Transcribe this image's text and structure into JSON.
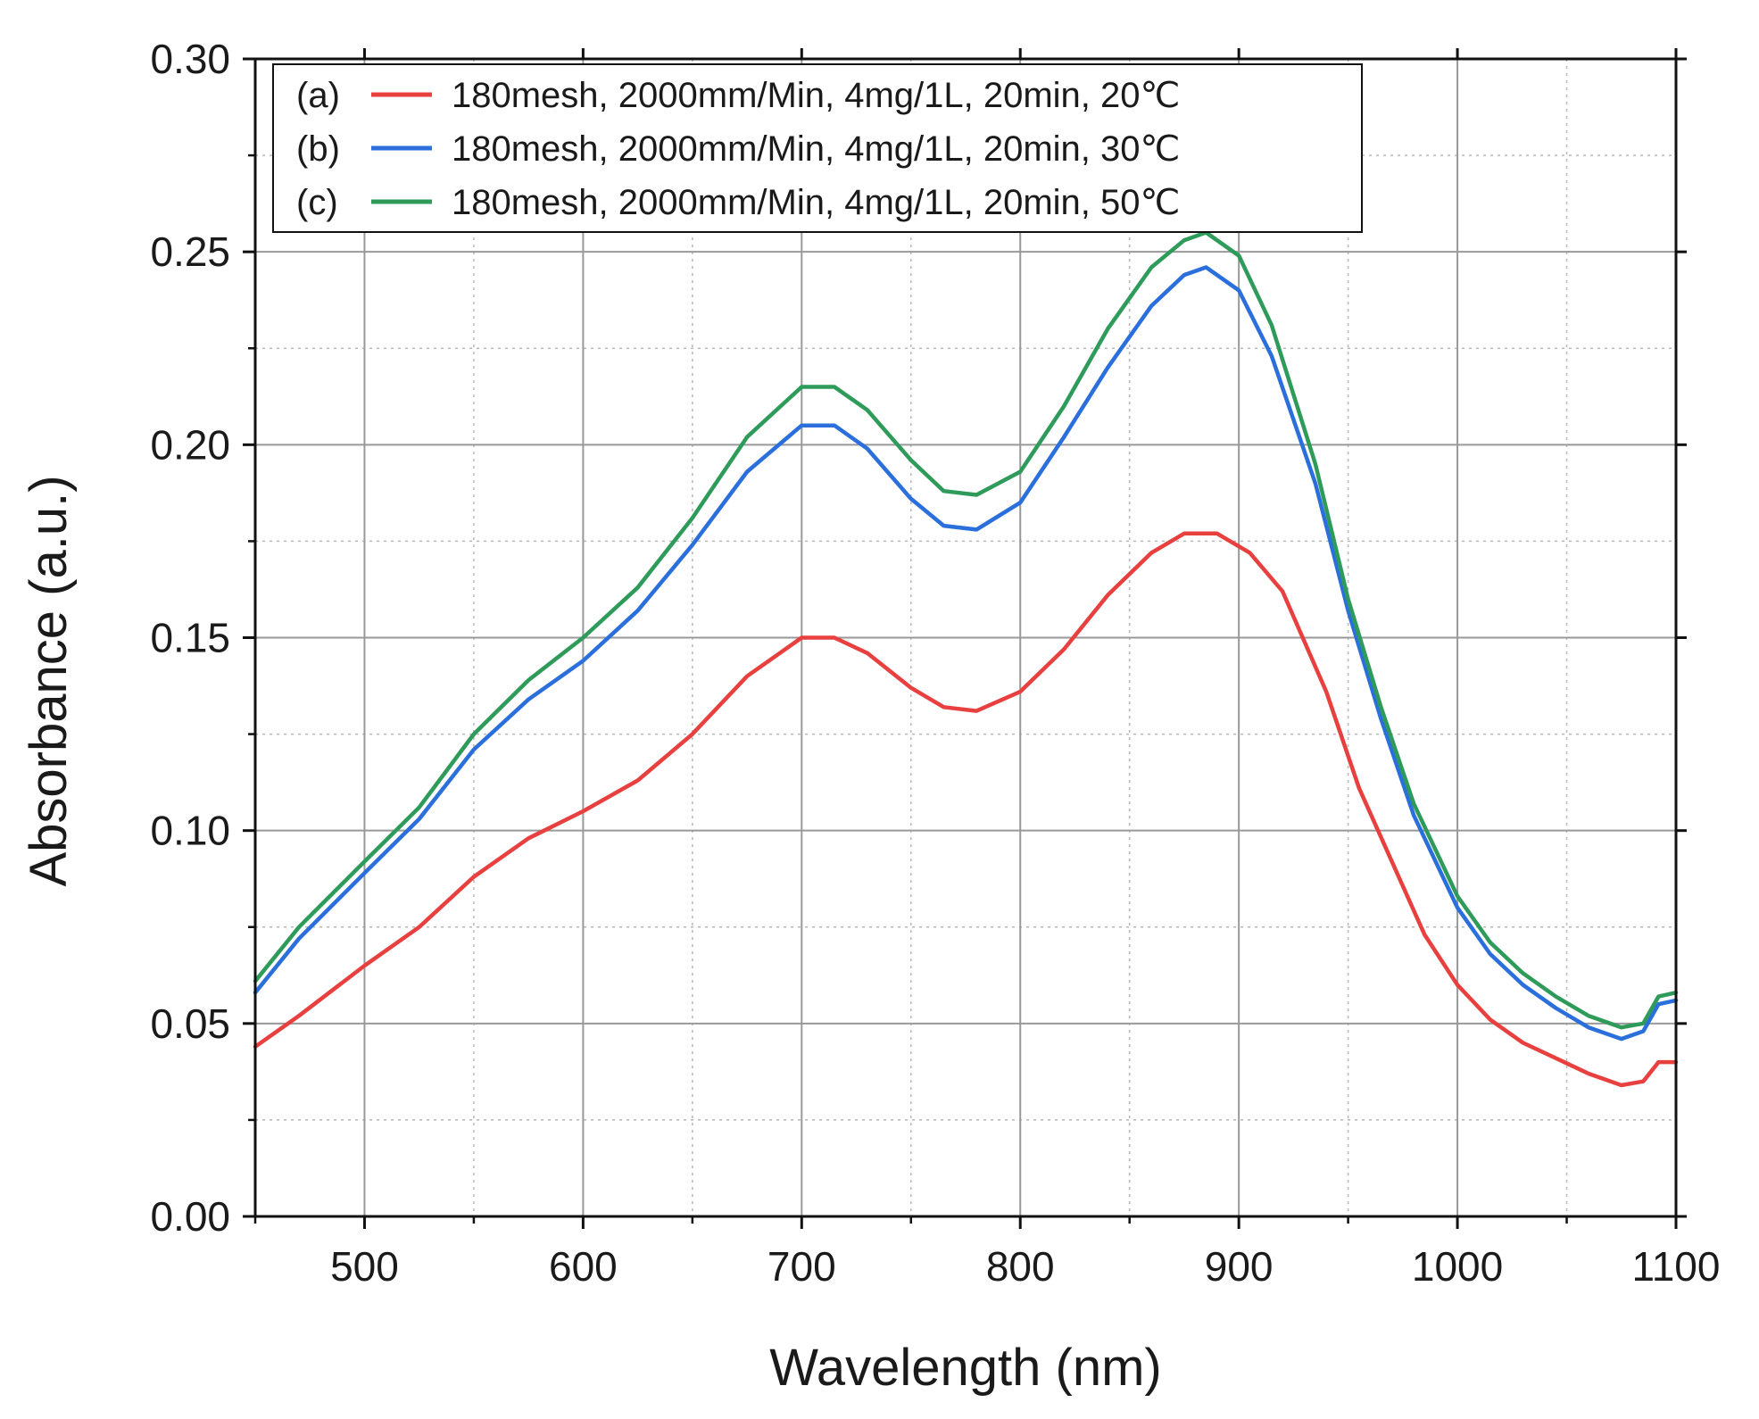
{
  "chart_data": {
    "type": "line",
    "xlabel": "Wavelength (nm)",
    "ylabel": "Absorbance (a.u.)",
    "xlim": [
      450,
      1100
    ],
    "ylim": [
      0.0,
      0.3
    ],
    "x_ticks": [
      500,
      600,
      700,
      800,
      900,
      1000,
      1100
    ],
    "x_tick_labels": [
      "500",
      "600",
      "700",
      "800",
      "900",
      "1000",
      "1100"
    ],
    "y_ticks": [
      0.0,
      0.05,
      0.1,
      0.15,
      0.2,
      0.25,
      0.3
    ],
    "y_tick_labels": [
      "0.00",
      "0.05",
      "0.10",
      "0.15",
      "0.20",
      "0.25",
      "0.30"
    ],
    "x_minor_step": 50,
    "y_minor_step": 0.025,
    "grid": true,
    "legend_position": "top-left",
    "series": [
      {
        "id": "a",
        "tag": "(a)",
        "name": "180mesh, 2000mm/Min, 4mg/1L, 20min, 20℃",
        "color": "#e8403f",
        "points": [
          [
            450,
            0.044
          ],
          [
            470,
            0.052
          ],
          [
            500,
            0.065
          ],
          [
            525,
            0.075
          ],
          [
            550,
            0.088
          ],
          [
            575,
            0.098
          ],
          [
            600,
            0.105
          ],
          [
            625,
            0.113
          ],
          [
            650,
            0.125
          ],
          [
            675,
            0.14
          ],
          [
            700,
            0.15
          ],
          [
            715,
            0.15
          ],
          [
            730,
            0.146
          ],
          [
            750,
            0.137
          ],
          [
            765,
            0.132
          ],
          [
            780,
            0.131
          ],
          [
            800,
            0.136
          ],
          [
            820,
            0.147
          ],
          [
            840,
            0.161
          ],
          [
            860,
            0.172
          ],
          [
            875,
            0.177
          ],
          [
            890,
            0.177
          ],
          [
            905,
            0.172
          ],
          [
            920,
            0.162
          ],
          [
            940,
            0.136
          ],
          [
            955,
            0.111
          ],
          [
            970,
            0.092
          ],
          [
            985,
            0.073
          ],
          [
            1000,
            0.06
          ],
          [
            1015,
            0.051
          ],
          [
            1030,
            0.045
          ],
          [
            1045,
            0.041
          ],
          [
            1060,
            0.037
          ],
          [
            1075,
            0.034
          ],
          [
            1085,
            0.035
          ],
          [
            1092,
            0.04
          ],
          [
            1100,
            0.04
          ]
        ]
      },
      {
        "id": "b",
        "tag": "(b)",
        "name": "180mesh, 2000mm/Min, 4mg/1L, 20min, 30℃",
        "color": "#2a6fdb",
        "points": [
          [
            450,
            0.058
          ],
          [
            470,
            0.072
          ],
          [
            500,
            0.089
          ],
          [
            525,
            0.103
          ],
          [
            550,
            0.121
          ],
          [
            575,
            0.134
          ],
          [
            600,
            0.144
          ],
          [
            625,
            0.157
          ],
          [
            650,
            0.174
          ],
          [
            675,
            0.193
          ],
          [
            700,
            0.205
          ],
          [
            715,
            0.205
          ],
          [
            730,
            0.199
          ],
          [
            750,
            0.186
          ],
          [
            765,
            0.179
          ],
          [
            780,
            0.178
          ],
          [
            800,
            0.185
          ],
          [
            820,
            0.202
          ],
          [
            840,
            0.22
          ],
          [
            860,
            0.236
          ],
          [
            875,
            0.244
          ],
          [
            885,
            0.246
          ],
          [
            900,
            0.24
          ],
          [
            915,
            0.223
          ],
          [
            935,
            0.19
          ],
          [
            950,
            0.157
          ],
          [
            965,
            0.129
          ],
          [
            980,
            0.104
          ],
          [
            1000,
            0.08
          ],
          [
            1015,
            0.068
          ],
          [
            1030,
            0.06
          ],
          [
            1045,
            0.054
          ],
          [
            1060,
            0.049
          ],
          [
            1075,
            0.046
          ],
          [
            1085,
            0.048
          ],
          [
            1092,
            0.055
          ],
          [
            1100,
            0.056
          ]
        ]
      },
      {
        "id": "c",
        "tag": "(c)",
        "name": "180mesh, 2000mm/Min, 4mg/1L, 20min, 50℃",
        "color": "#2e9b5a",
        "points": [
          [
            450,
            0.061
          ],
          [
            470,
            0.075
          ],
          [
            500,
            0.092
          ],
          [
            525,
            0.106
          ],
          [
            550,
            0.125
          ],
          [
            575,
            0.139
          ],
          [
            600,
            0.15
          ],
          [
            625,
            0.163
          ],
          [
            650,
            0.181
          ],
          [
            675,
            0.202
          ],
          [
            700,
            0.215
          ],
          [
            715,
            0.215
          ],
          [
            730,
            0.209
          ],
          [
            750,
            0.196
          ],
          [
            765,
            0.188
          ],
          [
            780,
            0.187
          ],
          [
            800,
            0.193
          ],
          [
            820,
            0.21
          ],
          [
            840,
            0.23
          ],
          [
            860,
            0.246
          ],
          [
            875,
            0.253
          ],
          [
            885,
            0.255
          ],
          [
            900,
            0.249
          ],
          [
            915,
            0.231
          ],
          [
            935,
            0.195
          ],
          [
            950,
            0.16
          ],
          [
            965,
            0.132
          ],
          [
            980,
            0.107
          ],
          [
            1000,
            0.083
          ],
          [
            1015,
            0.071
          ],
          [
            1030,
            0.063
          ],
          [
            1045,
            0.057
          ],
          [
            1060,
            0.052
          ],
          [
            1075,
            0.049
          ],
          [
            1085,
            0.05
          ],
          [
            1092,
            0.057
          ],
          [
            1100,
            0.058
          ]
        ]
      }
    ]
  }
}
